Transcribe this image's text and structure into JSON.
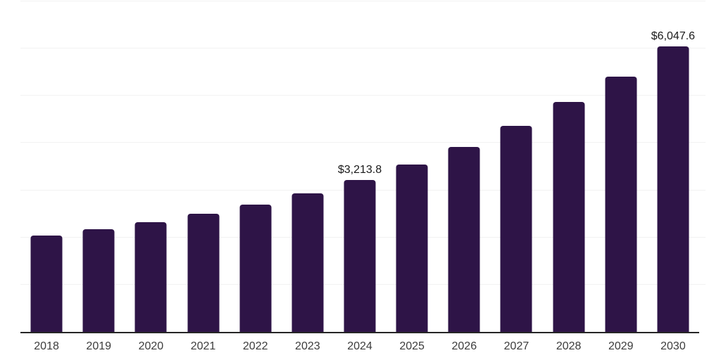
{
  "chart_data": {
    "type": "bar",
    "title": "",
    "xlabel": "",
    "ylabel": "",
    "categories": [
      "2018",
      "2019",
      "2020",
      "2021",
      "2022",
      "2023",
      "2024",
      "2025",
      "2026",
      "2027",
      "2028",
      "2029",
      "2030"
    ],
    "values": [
      2035,
      2175,
      2330,
      2500,
      2695,
      2935,
      3213.8,
      3545,
      3915,
      4360,
      4875,
      5410,
      6047.6
    ],
    "data_labels": {
      "2024": "$3,213.8",
      "2030": "$6,047.6"
    },
    "ylim": [
      0,
      7000
    ],
    "gridline_step": 1000,
    "grid": "horizontal",
    "legend_position": "none",
    "colors": {
      "bar": "#2e1447",
      "gridline": "#f2f2f2",
      "axis_line": "#262626",
      "tick_label": "#3c3c3c",
      "data_label": "#1a1a1a",
      "background": "#ffffff"
    }
  }
}
